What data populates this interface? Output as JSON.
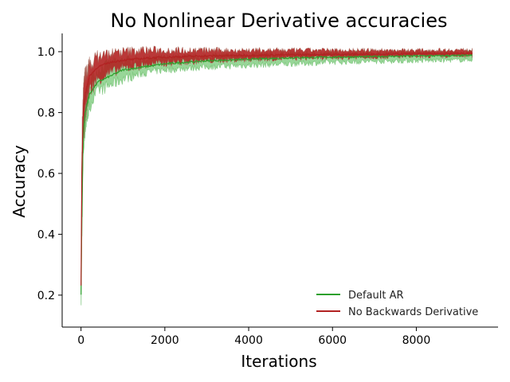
{
  "chart_data": {
    "type": "line",
    "title": "No Nonlinear Derivative accuracies",
    "xlabel": "Iterations",
    "ylabel": "Accuracy",
    "xlim": [
      -450,
      9950
    ],
    "ylim": [
      0.095,
      1.06
    ],
    "xticks": [
      0,
      2000,
      4000,
      6000,
      8000
    ],
    "yticks": [
      0.2,
      0.4,
      0.6,
      0.8,
      1.0
    ],
    "xtick_labels": [
      "0",
      "2000",
      "4000",
      "6000",
      "8000"
    ],
    "ytick_labels": [
      "0.2",
      "0.4",
      "0.6",
      "0.8",
      "1.0"
    ],
    "grid": false,
    "legend_position": "lower-right",
    "x": [
      0,
      20,
      50,
      100,
      200,
      400,
      700,
      1000,
      1500,
      2000,
      3000,
      4000,
      5000,
      6000,
      7000,
      8000,
      9000,
      9350
    ],
    "series": [
      {
        "name": "Default AR",
        "color": "#2ca02c",
        "values": [
          0.2,
          0.45,
          0.72,
          0.8,
          0.86,
          0.9,
          0.92,
          0.94,
          0.95,
          0.96,
          0.97,
          0.975,
          0.98,
          0.982,
          0.984,
          0.986,
          0.987,
          0.988
        ],
        "band_lower": [
          0.14,
          0.38,
          0.66,
          0.75,
          0.82,
          0.87,
          0.89,
          0.91,
          0.93,
          0.94,
          0.95,
          0.955,
          0.96,
          0.965,
          0.968,
          0.97,
          0.972,
          0.974
        ],
        "band_upper": [
          0.26,
          0.52,
          0.78,
          0.85,
          0.9,
          0.94,
          0.96,
          0.97,
          0.975,
          0.98,
          0.985,
          0.99,
          0.993,
          0.995,
          0.996,
          0.997,
          0.998,
          0.998
        ]
      },
      {
        "name": "No Backwards Derivative",
        "color": "#b22222",
        "values": [
          0.23,
          0.6,
          0.8,
          0.86,
          0.92,
          0.95,
          0.965,
          0.972,
          0.978,
          0.982,
          0.986,
          0.988,
          0.99,
          0.991,
          0.992,
          0.993,
          0.994,
          0.994
        ],
        "band_lower": [
          0.22,
          0.5,
          0.72,
          0.8,
          0.87,
          0.91,
          0.93,
          0.945,
          0.955,
          0.962,
          0.97,
          0.975,
          0.978,
          0.98,
          0.982,
          0.984,
          0.985,
          0.986
        ],
        "band_upper": [
          0.25,
          0.7,
          0.87,
          0.92,
          0.96,
          0.985,
          0.995,
          1.0,
          1.005,
          1.005,
          1.005,
          1.005,
          1.005,
          1.005,
          1.005,
          1.005,
          1.006,
          1.006
        ]
      }
    ]
  }
}
